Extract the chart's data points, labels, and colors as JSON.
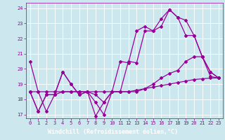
{
  "xlabel": "Windchill (Refroidissement éolien,°C)",
  "bg_color": "#cce8ee",
  "line_color": "#990099",
  "grid_color": "#ffffff",
  "xlabel_bg": "#9900aa",
  "xlabel_text_color": "#ffffff",
  "xlim": [
    -0.5,
    23.5
  ],
  "ylim": [
    16.75,
    24.35
  ],
  "yticks": [
    17,
    18,
    19,
    20,
    21,
    22,
    23,
    24
  ],
  "xticks": [
    0,
    1,
    2,
    3,
    4,
    5,
    6,
    7,
    8,
    9,
    10,
    11,
    12,
    13,
    14,
    15,
    16,
    17,
    18,
    19,
    20,
    21,
    22,
    23
  ],
  "line1": [
    [
      0,
      20.5
    ],
    [
      1,
      18.5
    ],
    [
      2,
      17.2
    ],
    [
      3,
      18.3
    ],
    [
      4,
      19.8
    ],
    [
      5,
      19.0
    ],
    [
      6,
      18.3
    ],
    [
      7,
      18.5
    ],
    [
      8,
      16.9
    ],
    [
      9,
      17.8
    ],
    [
      10,
      18.5
    ],
    [
      11,
      20.5
    ],
    [
      12,
      20.4
    ],
    [
      13,
      22.5
    ],
    [
      14,
      22.8
    ],
    [
      15,
      22.5
    ],
    [
      16,
      23.3
    ],
    [
      17,
      23.9
    ],
    [
      18,
      23.4
    ],
    [
      19,
      23.2
    ],
    [
      20,
      22.2
    ],
    [
      21,
      20.8
    ],
    [
      22,
      19.5
    ],
    [
      23,
      19.4
    ]
  ],
  "line2": [
    [
      0,
      18.5
    ],
    [
      1,
      18.5
    ],
    [
      2,
      18.5
    ],
    [
      3,
      18.5
    ],
    [
      4,
      18.5
    ],
    [
      5,
      18.5
    ],
    [
      6,
      18.5
    ],
    [
      7,
      18.5
    ],
    [
      8,
      18.5
    ],
    [
      9,
      18.5
    ],
    [
      10,
      18.5
    ],
    [
      11,
      18.5
    ],
    [
      12,
      18.5
    ],
    [
      13,
      18.6
    ],
    [
      14,
      18.7
    ],
    [
      15,
      18.8
    ],
    [
      16,
      18.9
    ],
    [
      17,
      19.0
    ],
    [
      18,
      19.1
    ],
    [
      19,
      19.2
    ],
    [
      20,
      19.3
    ],
    [
      21,
      19.35
    ],
    [
      22,
      19.4
    ],
    [
      23,
      19.4
    ]
  ],
  "line3": [
    [
      0,
      18.5
    ],
    [
      1,
      17.2
    ],
    [
      2,
      18.3
    ],
    [
      3,
      18.3
    ],
    [
      4,
      19.8
    ],
    [
      5,
      19.0
    ],
    [
      6,
      18.3
    ],
    [
      7,
      18.5
    ],
    [
      8,
      17.8
    ],
    [
      9,
      17.0
    ],
    [
      10,
      18.5
    ],
    [
      11,
      18.5
    ],
    [
      12,
      20.5
    ],
    [
      13,
      20.4
    ],
    [
      14,
      22.5
    ],
    [
      15,
      22.5
    ],
    [
      16,
      22.8
    ],
    [
      17,
      23.9
    ],
    [
      18,
      23.4
    ],
    [
      19,
      22.2
    ],
    [
      20,
      22.2
    ],
    [
      21,
      20.8
    ],
    [
      22,
      19.8
    ],
    [
      23,
      19.4
    ]
  ],
  "line4": [
    [
      0,
      18.5
    ],
    [
      1,
      17.2
    ],
    [
      2,
      18.3
    ],
    [
      3,
      18.3
    ],
    [
      4,
      18.5
    ],
    [
      5,
      18.5
    ],
    [
      6,
      18.5
    ],
    [
      7,
      18.5
    ],
    [
      8,
      18.3
    ],
    [
      9,
      17.8
    ],
    [
      10,
      18.5
    ],
    [
      11,
      18.5
    ],
    [
      12,
      18.5
    ],
    [
      13,
      18.5
    ],
    [
      14,
      18.7
    ],
    [
      15,
      19.0
    ],
    [
      16,
      19.4
    ],
    [
      17,
      19.7
    ],
    [
      18,
      19.9
    ],
    [
      19,
      20.5
    ],
    [
      20,
      20.8
    ],
    [
      21,
      20.8
    ],
    [
      22,
      19.8
    ],
    [
      23,
      19.4
    ]
  ]
}
